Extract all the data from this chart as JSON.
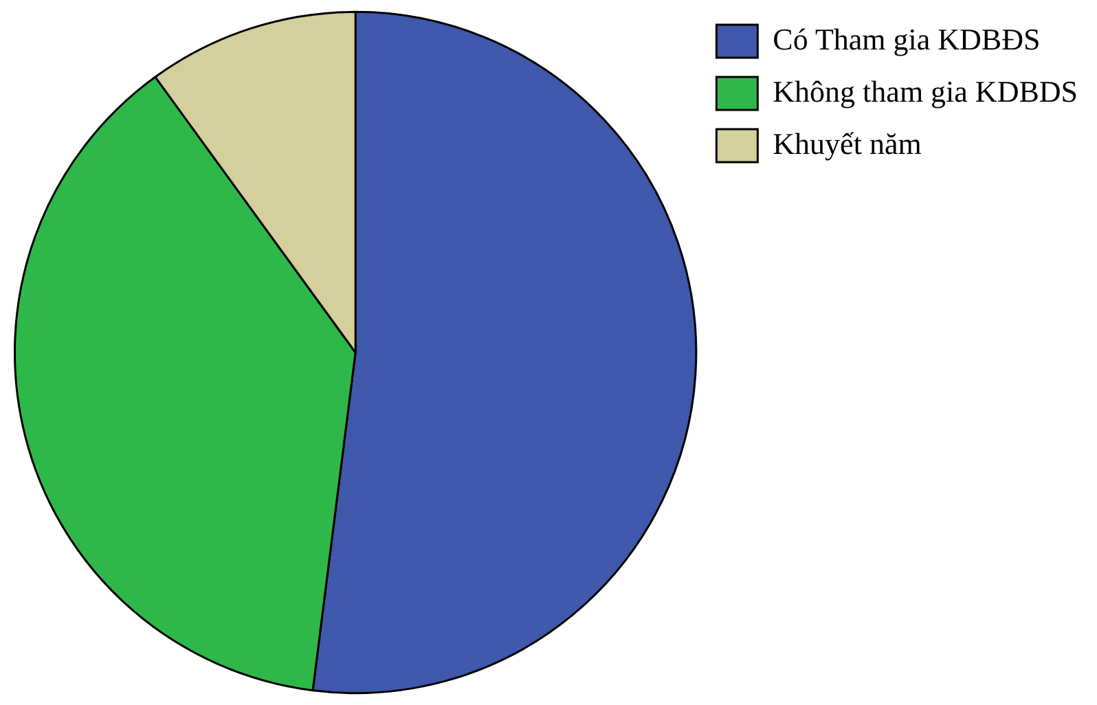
{
  "chart_data": {
    "type": "pie",
    "categories": [
      "Có Tham gia KDBĐS",
      "Không tham gia KDBDS",
      "Khuyết năm"
    ],
    "values": [
      52,
      38,
      10
    ],
    "colors": [
      "#3f58ab",
      "#2fb84a",
      "#d4cf9c"
    ],
    "legend": "top right"
  }
}
